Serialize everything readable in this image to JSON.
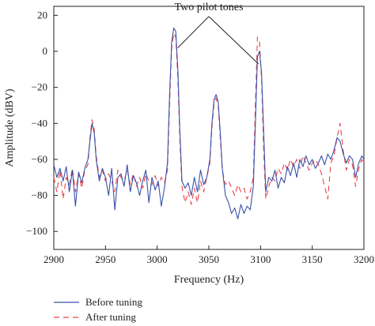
{
  "chart_data": {
    "type": "line",
    "title": "",
    "xlabel": "Frequency (Hz)",
    "ylabel": "Amplitude (dBV)",
    "xlim": [
      2900,
      3200
    ],
    "ylim": [
      -110,
      25
    ],
    "xticks": [
      2900,
      2950,
      3000,
      3050,
      3100,
      3150,
      3200
    ],
    "yticks": [
      20,
      0,
      -20,
      -40,
      -60,
      -80,
      -100
    ],
    "xtick_labels": [
      "2900",
      "2950",
      "3000",
      "3050",
      "3100",
      "3150",
      "3200"
    ],
    "ytick_labels": [
      "20",
      "0",
      "−20",
      "−40",
      "−60",
      "−80",
      "−100"
    ],
    "grid": false,
    "legend_position": "bottom-left, below plot",
    "annotation": {
      "text": "Two pilot tones",
      "x": 3050,
      "y": 22,
      "targets": [
        [
          3020,
          2
        ],
        [
          3098,
          -7
        ]
      ]
    },
    "series": [
      {
        "name": "Before tuning",
        "color": "#3a52a8",
        "style": "solid",
        "points": [
          [
            2900,
            -63
          ],
          [
            2903,
            -70
          ],
          [
            2906,
            -65
          ],
          [
            2909,
            -72
          ],
          [
            2912,
            -64
          ],
          [
            2915,
            -78
          ],
          [
            2918,
            -66
          ],
          [
            2921,
            -86
          ],
          [
            2924,
            -67
          ],
          [
            2927,
            -73
          ],
          [
            2930,
            -65
          ],
          [
            2933,
            -60
          ],
          [
            2935,
            -50
          ],
          [
            2937,
            -40
          ],
          [
            2939,
            -45
          ],
          [
            2941,
            -60
          ],
          [
            2944,
            -72
          ],
          [
            2947,
            -65
          ],
          [
            2950,
            -70
          ],
          [
            2953,
            -80
          ],
          [
            2956,
            -65
          ],
          [
            2959,
            -88
          ],
          [
            2962,
            -70
          ],
          [
            2965,
            -68
          ],
          [
            2968,
            -75
          ],
          [
            2971,
            -63
          ],
          [
            2974,
            -78
          ],
          [
            2977,
            -69
          ],
          [
            2980,
            -73
          ],
          [
            2983,
            -80
          ],
          [
            2986,
            -72
          ],
          [
            2989,
            -66
          ],
          [
            2992,
            -84
          ],
          [
            2995,
            -70
          ],
          [
            2998,
            -77
          ],
          [
            3001,
            -72
          ],
          [
            3004,
            -86
          ],
          [
            3007,
            -76
          ],
          [
            3010,
            -62
          ],
          [
            3012,
            -25
          ],
          [
            3014,
            5
          ],
          [
            3016,
            13
          ],
          [
            3018,
            11
          ],
          [
            3020,
            -10
          ],
          [
            3022,
            -45
          ],
          [
            3024,
            -72
          ],
          [
            3027,
            -76
          ],
          [
            3030,
            -73
          ],
          [
            3033,
            -80
          ],
          [
            3036,
            -70
          ],
          [
            3039,
            -78
          ],
          [
            3042,
            -66
          ],
          [
            3045,
            -74
          ],
          [
            3048,
            -70
          ],
          [
            3051,
            -60
          ],
          [
            3053,
            -40
          ],
          [
            3055,
            -27
          ],
          [
            3057,
            -24
          ],
          [
            3059,
            -28
          ],
          [
            3061,
            -45
          ],
          [
            3063,
            -65
          ],
          [
            3066,
            -80
          ],
          [
            3069,
            -84
          ],
          [
            3072,
            -90
          ],
          [
            3075,
            -87
          ],
          [
            3078,
            -93
          ],
          [
            3081,
            -85
          ],
          [
            3084,
            -90
          ],
          [
            3087,
            -86
          ],
          [
            3090,
            -88
          ],
          [
            3093,
            -75
          ],
          [
            3095,
            -40
          ],
          [
            3097,
            -3
          ],
          [
            3099,
            0
          ],
          [
            3101,
            -12
          ],
          [
            3103,
            -45
          ],
          [
            3105,
            -78
          ],
          [
            3108,
            -70
          ],
          [
            3111,
            -72
          ],
          [
            3114,
            -66
          ],
          [
            3117,
            -76
          ],
          [
            3120,
            -70
          ],
          [
            3123,
            -73
          ],
          [
            3126,
            -64
          ],
          [
            3129,
            -69
          ],
          [
            3132,
            -62
          ],
          [
            3135,
            -70
          ],
          [
            3138,
            -60
          ],
          [
            3141,
            -64
          ],
          [
            3144,
            -58
          ],
          [
            3147,
            -63
          ],
          [
            3150,
            -60
          ],
          [
            3153,
            -65
          ],
          [
            3156,
            -62
          ],
          [
            3159,
            -58
          ],
          [
            3162,
            -63
          ],
          [
            3165,
            -57
          ],
          [
            3168,
            -60
          ],
          [
            3171,
            -55
          ],
          [
            3174,
            -48
          ],
          [
            3177,
            -50
          ],
          [
            3180,
            -57
          ],
          [
            3183,
            -62
          ],
          [
            3186,
            -58
          ],
          [
            3189,
            -60
          ],
          [
            3192,
            -70
          ],
          [
            3195,
            -62
          ],
          [
            3198,
            -58
          ],
          [
            3200,
            -60
          ]
        ]
      },
      {
        "name": "After tuning",
        "color": "#e8434a",
        "style": "dashed",
        "points": [
          [
            2900,
            -70
          ],
          [
            2903,
            -78
          ],
          [
            2906,
            -66
          ],
          [
            2909,
            -82
          ],
          [
            2912,
            -70
          ],
          [
            2915,
            -74
          ],
          [
            2918,
            -65
          ],
          [
            2921,
            -78
          ],
          [
            2924,
            -68
          ],
          [
            2927,
            -76
          ],
          [
            2930,
            -66
          ],
          [
            2933,
            -63
          ],
          [
            2935,
            -48
          ],
          [
            2937,
            -38
          ],
          [
            2939,
            -43
          ],
          [
            2941,
            -58
          ],
          [
            2944,
            -70
          ],
          [
            2947,
            -66
          ],
          [
            2950,
            -72
          ],
          [
            2953,
            -68
          ],
          [
            2956,
            -72
          ],
          [
            2959,
            -78
          ],
          [
            2962,
            -66
          ],
          [
            2965,
            -70
          ],
          [
            2968,
            -72
          ],
          [
            2971,
            -66
          ],
          [
            2974,
            -74
          ],
          [
            2977,
            -68
          ],
          [
            2980,
            -75
          ],
          [
            2983,
            -70
          ],
          [
            2986,
            -76
          ],
          [
            2989,
            -68
          ],
          [
            2992,
            -72
          ],
          [
            2995,
            -74
          ],
          [
            2998,
            -69
          ],
          [
            3001,
            -75
          ],
          [
            3004,
            -70
          ],
          [
            3007,
            -73
          ],
          [
            3010,
            -66
          ],
          [
            3012,
            -30
          ],
          [
            3014,
            2
          ],
          [
            3016,
            10
          ],
          [
            3018,
            8
          ],
          [
            3020,
            -15
          ],
          [
            3022,
            -50
          ],
          [
            3024,
            -75
          ],
          [
            3027,
            -84
          ],
          [
            3030,
            -78
          ],
          [
            3033,
            -85
          ],
          [
            3036,
            -76
          ],
          [
            3039,
            -84
          ],
          [
            3042,
            -72
          ],
          [
            3045,
            -78
          ],
          [
            3048,
            -70
          ],
          [
            3051,
            -62
          ],
          [
            3053,
            -42
          ],
          [
            3055,
            -29
          ],
          [
            3057,
            -26
          ],
          [
            3059,
            -30
          ],
          [
            3061,
            -48
          ],
          [
            3063,
            -66
          ],
          [
            3066,
            -74
          ],
          [
            3069,
            -72
          ],
          [
            3072,
            -76
          ],
          [
            3075,
            -80
          ],
          [
            3078,
            -74
          ],
          [
            3081,
            -78
          ],
          [
            3084,
            -76
          ],
          [
            3087,
            -82
          ],
          [
            3090,
            -78
          ],
          [
            3093,
            -70
          ],
          [
            3095,
            -30
          ],
          [
            3097,
            8
          ],
          [
            3099,
            5
          ],
          [
            3101,
            -15
          ],
          [
            3103,
            -55
          ],
          [
            3105,
            -82
          ],
          [
            3108,
            -75
          ],
          [
            3111,
            -70
          ],
          [
            3114,
            -72
          ],
          [
            3117,
            -65
          ],
          [
            3120,
            -68
          ],
          [
            3123,
            -62
          ],
          [
            3126,
            -66
          ],
          [
            3129,
            -60
          ],
          [
            3132,
            -64
          ],
          [
            3135,
            -60
          ],
          [
            3138,
            -65
          ],
          [
            3141,
            -58
          ],
          [
            3144,
            -62
          ],
          [
            3147,
            -66
          ],
          [
            3150,
            -62
          ],
          [
            3153,
            -60
          ],
          [
            3156,
            -63
          ],
          [
            3159,
            -68
          ],
          [
            3162,
            -75
          ],
          [
            3165,
            -82
          ],
          [
            3168,
            -62
          ],
          [
            3171,
            -58
          ],
          [
            3174,
            -48
          ],
          [
            3177,
            -40
          ],
          [
            3180,
            -55
          ],
          [
            3183,
            -66
          ],
          [
            3186,
            -60
          ],
          [
            3189,
            -63
          ],
          [
            3192,
            -75
          ],
          [
            3195,
            -65
          ],
          [
            3198,
            -60
          ],
          [
            3200,
            -62
          ]
        ]
      }
    ]
  }
}
